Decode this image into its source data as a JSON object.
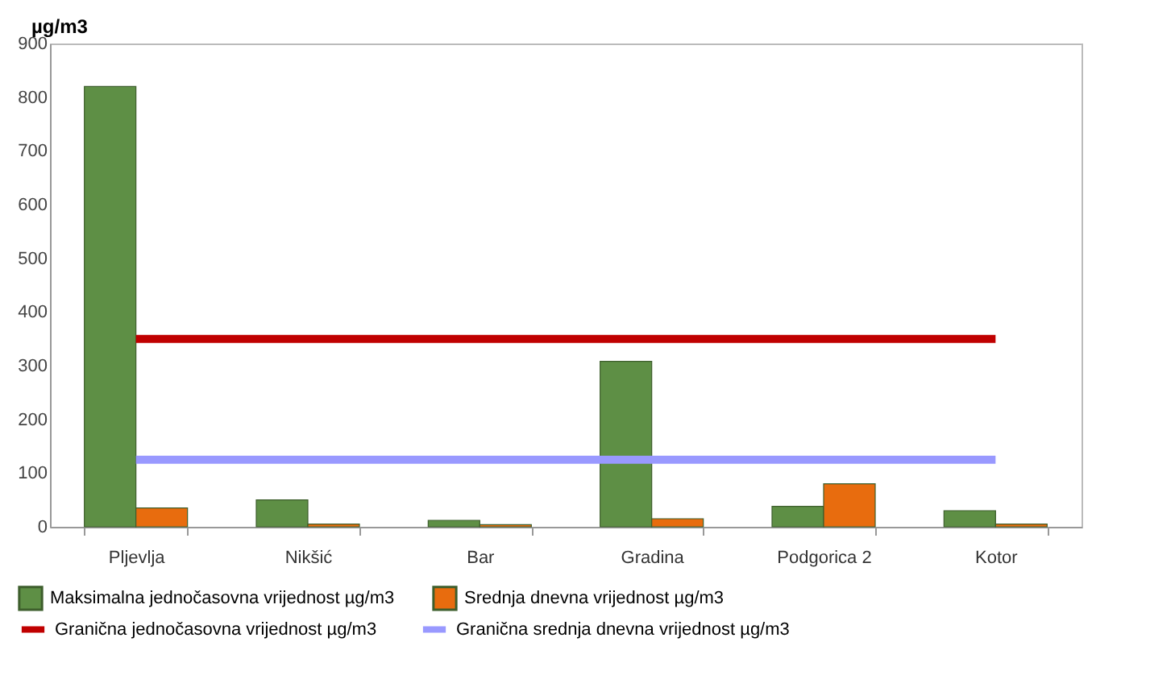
{
  "chart_data": {
    "type": "bar",
    "ylabel": "µg/m3",
    "categories": [
      "Pljevlja",
      "Nikšić",
      "Bar",
      "Gradina",
      "Podgorica 2",
      "Kotor"
    ],
    "series": [
      {
        "name": "Maksimalna jednočasovna vrijednost µg/m3",
        "color": "#5e8f45",
        "values": [
          820,
          50,
          12,
          308,
          38,
          30
        ]
      },
      {
        "name": "Srednja dnevna vrijednost µg/m3",
        "color": "#e86c0e",
        "values": [
          35,
          5,
          4,
          15,
          80,
          5
        ]
      },
      {
        "name": "Granična jednočasovna vrijednost µg/m3",
        "color": "#c00000",
        "type": "line",
        "values": [
          350,
          350,
          350,
          350,
          350,
          350
        ]
      },
      {
        "name": "Granična srednja dnevna vrijednost µg/m3",
        "color": "#9999ff",
        "type": "line",
        "values": [
          125,
          125,
          125,
          125,
          125,
          125
        ]
      }
    ],
    "ylim": [
      0,
      900
    ],
    "yticks": [
      0,
      100,
      200,
      300,
      400,
      500,
      600,
      700,
      800,
      900
    ],
    "grid": false,
    "legend": "bottom"
  }
}
